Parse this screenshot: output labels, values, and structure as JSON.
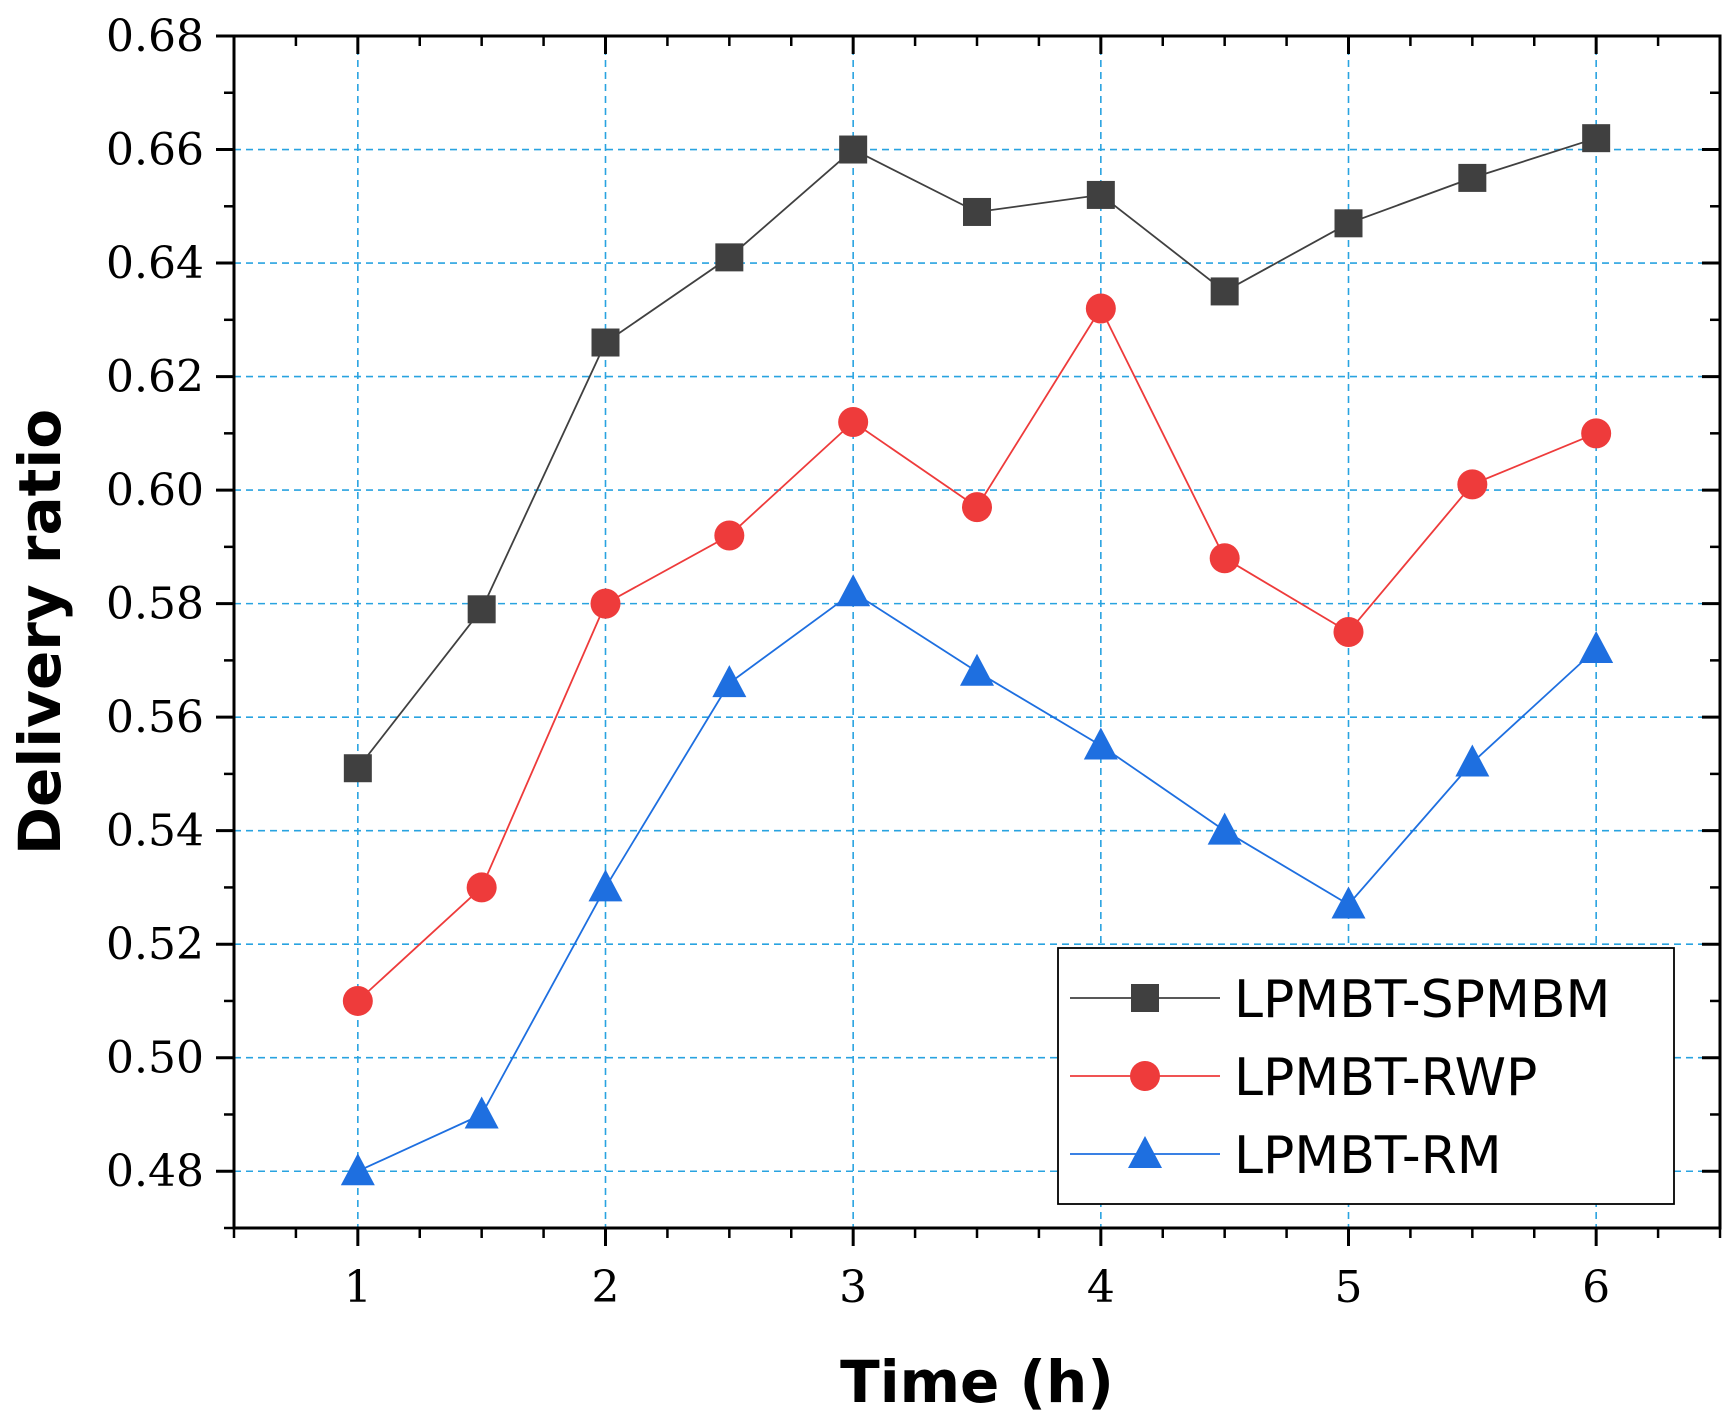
{
  "chart_data": {
    "type": "line",
    "title": "",
    "xlabel": "Time (h)",
    "ylabel": "Delivery ratio",
    "xlim": [
      0.5,
      6.5
    ],
    "ylim": [
      0.47,
      0.68
    ],
    "x_ticks": [
      1,
      2,
      3,
      4,
      5,
      6
    ],
    "x_tick_labels": [
      "1",
      "2",
      "3",
      "4",
      "5",
      "6"
    ],
    "y_ticks": [
      0.48,
      0.5,
      0.52,
      0.54,
      0.56,
      0.58,
      0.6,
      0.62,
      0.64,
      0.66,
      0.68
    ],
    "y_tick_labels": [
      "0.48",
      "0.50",
      "0.52",
      "0.54",
      "0.56",
      "0.58",
      "0.60",
      "0.62",
      "0.64",
      "0.66",
      "0.68"
    ],
    "grid": true,
    "grid_color": "#29a3e0",
    "legend_position": "bottom-right",
    "x": [
      1,
      1.5,
      2,
      2.5,
      3,
      3.5,
      4,
      4.5,
      5,
      5.5,
      6
    ],
    "series": [
      {
        "name": "LPMBT-SPMBM",
        "color": "#404040",
        "marker": "square",
        "values": [
          0.551,
          0.579,
          0.626,
          0.641,
          0.66,
          0.649,
          0.652,
          0.635,
          0.647,
          0.655,
          0.662
        ]
      },
      {
        "name": "LPMBT-RWP",
        "color": "#ee3b3b",
        "marker": "circle",
        "values": [
          0.51,
          0.53,
          0.58,
          0.592,
          0.612,
          0.597,
          0.632,
          0.588,
          0.575,
          0.601,
          0.61
        ]
      },
      {
        "name": "LPMBT-RM",
        "color": "#1e6fe0",
        "marker": "triangle",
        "values": [
          0.48,
          0.49,
          0.53,
          0.566,
          0.582,
          0.568,
          0.555,
          0.54,
          0.527,
          0.552,
          0.572
        ]
      }
    ]
  }
}
